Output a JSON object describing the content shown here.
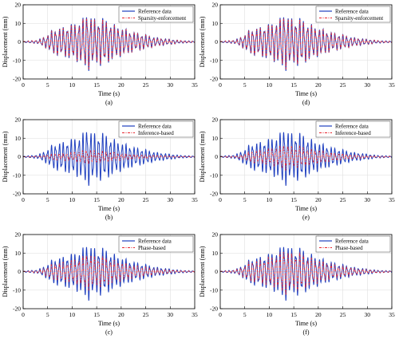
{
  "chart_data": [
    {
      "type": "line",
      "panel": "a",
      "caption": "(a)",
      "xlabel": "Time (s)",
      "ylabel": "Displacement (mm)",
      "xlim": [
        0,
        35
      ],
      "ylim": [
        -20,
        20
      ],
      "xticks": [
        0,
        5,
        10,
        15,
        20,
        25,
        30,
        35
      ],
      "yticks": [
        -20,
        -10,
        0,
        10,
        20
      ],
      "grid": true,
      "legend_position": "top-right",
      "series": [
        {
          "name": "Reference data",
          "color": "#1f3fbf",
          "style": "solid"
        },
        {
          "name": "Sparsity-enforcement",
          "color": "#e8262e",
          "style": "dash-dot",
          "amp_ratio": 0.95,
          "phase_shift": 0.0
        }
      ]
    },
    {
      "type": "line",
      "panel": "d",
      "caption": "(d)",
      "xlabel": "Time (s)",
      "ylabel": "Displacement (mm)",
      "xlim": [
        0,
        35
      ],
      "ylim": [
        -20,
        20
      ],
      "xticks": [
        0,
        5,
        10,
        15,
        20,
        25,
        30,
        35
      ],
      "yticks": [
        -20,
        -10,
        0,
        10,
        20
      ],
      "grid": true,
      "legend_position": "top-right",
      "series": [
        {
          "name": "Reference data",
          "color": "#1f3fbf",
          "style": "solid"
        },
        {
          "name": "Sparsity-enforcement",
          "color": "#e8262e",
          "style": "dash-dot",
          "amp_ratio": 0.95,
          "phase_shift": 0.0
        }
      ]
    },
    {
      "type": "line",
      "panel": "b",
      "caption": "(b)",
      "xlabel": "Time (s)",
      "ylabel": "Displacement (mm)",
      "xlim": [
        0,
        35
      ],
      "ylim": [
        -20,
        20
      ],
      "xticks": [
        0,
        5,
        10,
        15,
        20,
        25,
        30,
        35
      ],
      "yticks": [
        -20,
        -10,
        0,
        10,
        20
      ],
      "grid": true,
      "legend_position": "top-right",
      "series": [
        {
          "name": "Reference data",
          "color": "#1f3fbf",
          "style": "solid"
        },
        {
          "name": "Inference-based",
          "color": "#e8262e",
          "style": "dash-dot",
          "amp_ratio": 0.25,
          "phase_shift": 0.6
        }
      ]
    },
    {
      "type": "line",
      "panel": "e",
      "caption": "(e)",
      "xlabel": "Time (s)",
      "ylabel": "Displacement (mm)",
      "xlim": [
        0,
        35
      ],
      "ylim": [
        -20,
        20
      ],
      "xticks": [
        0,
        5,
        10,
        15,
        20,
        25,
        30,
        35
      ],
      "yticks": [
        -20,
        -10,
        0,
        10,
        20
      ],
      "grid": true,
      "legend_position": "top-right",
      "series": [
        {
          "name": "Reference data",
          "color": "#1f3fbf",
          "style": "solid"
        },
        {
          "name": "Inference-based",
          "color": "#e8262e",
          "style": "dash-dot",
          "amp_ratio": 0.45,
          "phase_shift": 0.3
        }
      ]
    },
    {
      "type": "line",
      "panel": "c",
      "caption": "(c)",
      "xlabel": "Time (s)",
      "ylabel": "Displacement (mm)",
      "xlim": [
        0,
        35
      ],
      "ylim": [
        -20,
        20
      ],
      "xticks": [
        0,
        5,
        10,
        15,
        20,
        25,
        30,
        35
      ],
      "yticks": [
        -20,
        -10,
        0,
        10,
        20
      ],
      "grid": true,
      "legend_position": "top-right",
      "series": [
        {
          "name": "Reference data",
          "color": "#1f3fbf",
          "style": "solid"
        },
        {
          "name": "Phase-based",
          "color": "#e8262e",
          "style": "dash-dot",
          "amp_ratio": 0.65,
          "phase_shift": 0.2
        }
      ]
    },
    {
      "type": "line",
      "panel": "f",
      "caption": "(f)",
      "xlabel": "Time (s)",
      "ylabel": "Displacement (mm)",
      "xlim": [
        0,
        35
      ],
      "ylim": [
        -20,
        20
      ],
      "xticks": [
        0,
        5,
        10,
        15,
        20,
        25,
        30,
        35
      ],
      "yticks": [
        -20,
        -10,
        0,
        10,
        20
      ],
      "grid": true,
      "legend_position": "top-right",
      "series": [
        {
          "name": "Reference data",
          "color": "#1f3fbf",
          "style": "solid"
        },
        {
          "name": "Phase-based",
          "color": "#e8262e",
          "style": "dash-dot",
          "amp_ratio": 0.8,
          "phase_shift": 0.1
        }
      ]
    }
  ],
  "reference_signal": {
    "t_start": 0,
    "t_end": 35,
    "dominant_frequency_hz": 1.25,
    "envelope_mm": [
      [
        0,
        0.3
      ],
      [
        3,
        1.0
      ],
      [
        5,
        4.0
      ],
      [
        6,
        7.0
      ],
      [
        8,
        8.0
      ],
      [
        10,
        10.0
      ],
      [
        12,
        12.0
      ],
      [
        13,
        17.0
      ],
      [
        14,
        14.0
      ],
      [
        15,
        12.0
      ],
      [
        16,
        14.0
      ],
      [
        17,
        12.0
      ],
      [
        19,
        9.0
      ],
      [
        21,
        7.0
      ],
      [
        23,
        5.0
      ],
      [
        25,
        4.0
      ],
      [
        27,
        2.5
      ],
      [
        30,
        1.5
      ],
      [
        32,
        0.8
      ],
      [
        35,
        0.4
      ]
    ]
  }
}
